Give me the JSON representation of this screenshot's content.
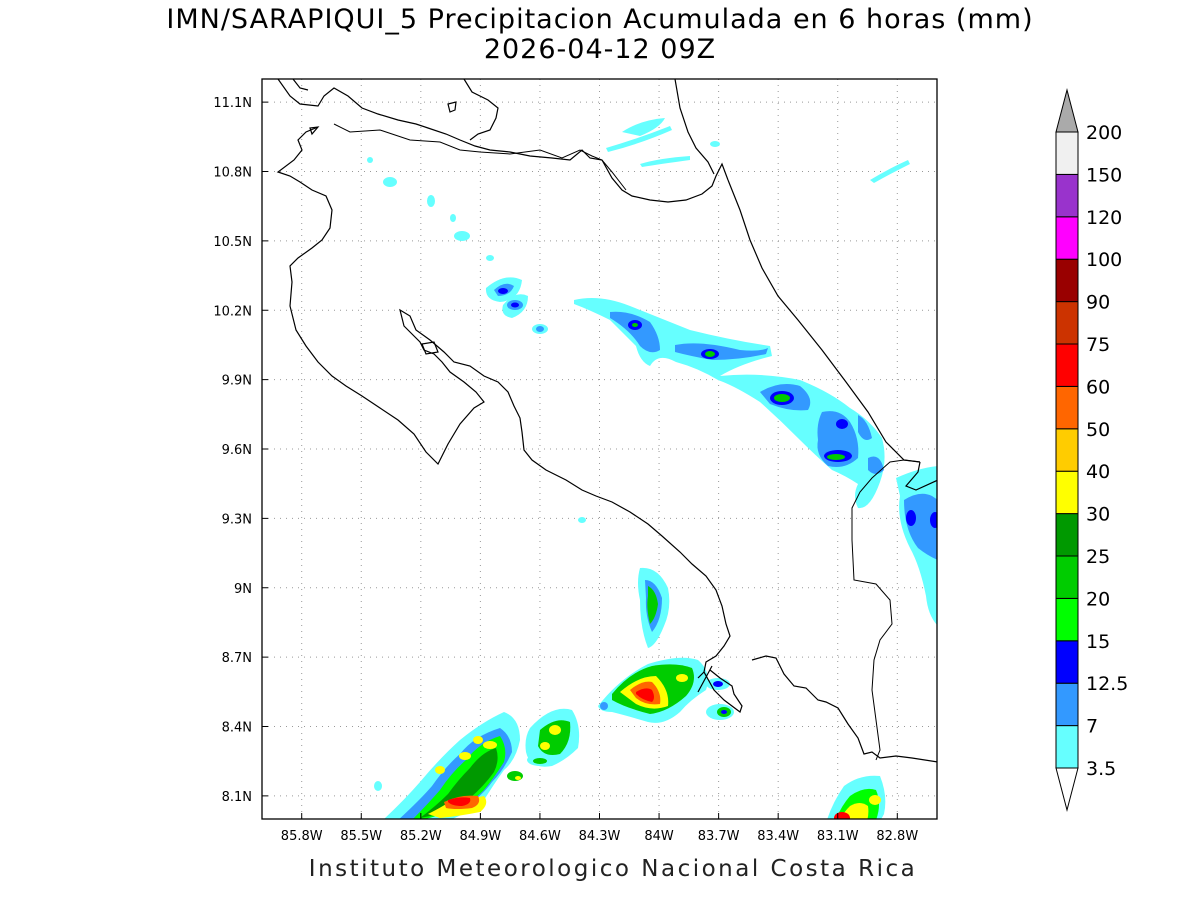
{
  "title": {
    "line1": "IMN/SARAPIQUI_5 Precipitacion Acumulada en 6 horas (mm)",
    "line2": "2026-04-12 09Z"
  },
  "footer": "Instituto Meteorologico Nacional Costa Rica",
  "map": {
    "lon_range": [
      -86.0,
      -82.6
    ],
    "lat_range": [
      8.0,
      11.2
    ],
    "lon_ticks": [
      "85.8W",
      "85.5W",
      "85.2W",
      "84.9W",
      "84.6W",
      "84.3W",
      "84W",
      "83.7W",
      "83.4W",
      "83.1W",
      "82.8W"
    ],
    "lat_ticks": [
      "11.1N",
      "10.8N",
      "10.5N",
      "10.2N",
      "9.9N",
      "9.6N",
      "9.3N",
      "9N",
      "8.7N",
      "8.4N",
      "8.1N"
    ],
    "grid": "dotted"
  },
  "colorbar": {
    "labels": [
      "3.5",
      "7",
      "12.5",
      "15",
      "20",
      "25",
      "30",
      "40",
      "50",
      "60",
      "75",
      "90",
      "100",
      "120",
      "150",
      "200"
    ],
    "colors": [
      "#66ffff",
      "#3399ff",
      "#0000ff",
      "#00ff00",
      "#00cc00",
      "#009900",
      "#ffff00",
      "#ffcc00",
      "#ff6600",
      "#ff0000",
      "#cc3300",
      "#990000",
      "#ff00ff",
      "#9933cc",
      "#f0f0f0"
    ],
    "lower_arrow_color": "#ffffff",
    "upper_arrow_color": "#aaaaaa"
  }
}
